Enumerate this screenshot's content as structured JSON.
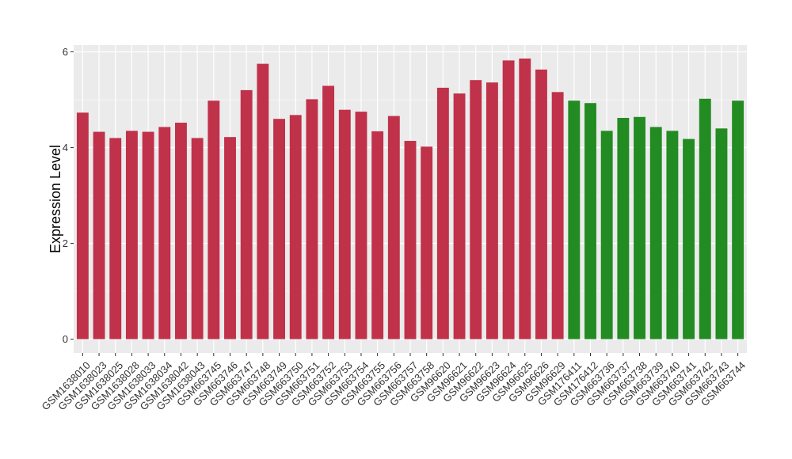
{
  "chart_data": {
    "type": "bar",
    "ylabel": "Expression Level",
    "xlabel": "",
    "ylim": [
      0,
      6.2
    ],
    "yticks": [
      0,
      2,
      4,
      6
    ],
    "grid": true,
    "categories": [
      "GSM1638010",
      "GSM1638023",
      "GSM1638025",
      "GSM1638028",
      "GSM1638033",
      "GSM1638034",
      "GSM1638042",
      "GSM1638043",
      "GSM663745",
      "GSM663746",
      "GSM663747",
      "GSM663748",
      "GSM663749",
      "GSM663750",
      "GSM663751",
      "GSM663752",
      "GSM663753",
      "GSM663754",
      "GSM663755",
      "GSM663756",
      "GSM663757",
      "GSM663758",
      "GSM96620",
      "GSM96621",
      "GSM96622",
      "GSM96623",
      "GSM96624",
      "GSM96625",
      "GSM96626",
      "GSM96629",
      "GSM176411",
      "GSM176412",
      "GSM663736",
      "GSM663737",
      "GSM663738",
      "GSM663739",
      "GSM663740",
      "GSM663741",
      "GSM663742",
      "GSM663743",
      "GSM663744"
    ],
    "values": [
      4.73,
      4.33,
      4.2,
      4.35,
      4.33,
      4.43,
      4.52,
      4.2,
      4.98,
      4.22,
      5.2,
      5.75,
      4.6,
      4.68,
      5.01,
      5.29,
      4.79,
      4.75,
      4.34,
      4.66,
      4.14,
      4.02,
      5.25,
      5.13,
      5.41,
      5.36,
      5.82,
      5.86,
      5.63,
      5.16,
      4.98,
      4.93,
      4.35,
      4.62,
      4.64,
      4.43,
      4.35,
      4.18,
      5.02,
      4.4,
      4.98
    ],
    "groups": [
      "red",
      "red",
      "red",
      "red",
      "red",
      "red",
      "red",
      "red",
      "red",
      "red",
      "red",
      "red",
      "red",
      "red",
      "red",
      "red",
      "red",
      "red",
      "red",
      "red",
      "red",
      "red",
      "red",
      "red",
      "red",
      "red",
      "red",
      "red",
      "red",
      "red",
      "green",
      "green",
      "green",
      "green",
      "green",
      "green",
      "green",
      "green",
      "green",
      "green",
      "green"
    ],
    "colors": {
      "red": "#C0314A",
      "green": "#228B22",
      "panel": "#EBEBEB",
      "grid": "#FFFFFF"
    }
  }
}
